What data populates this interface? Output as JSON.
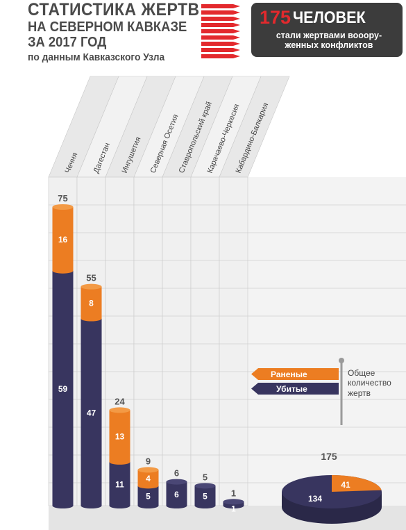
{
  "header": {
    "title_line1": "СТАТИСТИКА ЖЕРТВ",
    "title_line2": "НА СЕВЕРНОМ КАВКАЗЕ",
    "title_line3": "ЗА 2017 ГОД",
    "title_line4": "по данным Кавказского Узла"
  },
  "banner": {
    "number": "175",
    "heading": "ЧЕЛОВЕК",
    "subtitle_line1": "стали жертвами вооору-",
    "subtitle_line2": "женных конфликтов"
  },
  "legend": {
    "wounded": "Раненые",
    "killed": "Убитые",
    "total_note_line1": "Общее",
    "total_note_line2": "количество",
    "total_note_line3": "жертв"
  },
  "colors": {
    "wounded": "#ec7d22",
    "killed": "#38355f",
    "legend_bar": "#9a9a9a",
    "grid_bg": "#eeeeee"
  },
  "chart_data": [
    {
      "type": "bar",
      "stacked": true,
      "categories": [
        "Чечня",
        "Дагестан",
        "Ингушетия",
        "Северная Осетия",
        "Ставропольский край",
        "Карачаево-Черкесия",
        "Кабардино-Балкария"
      ],
      "series": [
        {
          "name": "Убитые",
          "values": [
            59,
            47,
            11,
            5,
            6,
            5,
            1
          ]
        },
        {
          "name": "Раненые",
          "values": [
            16,
            8,
            13,
            4,
            0,
            0,
            0
          ]
        }
      ],
      "totals": [
        75,
        55,
        24,
        9,
        6,
        5,
        1
      ],
      "ylim": [
        0,
        80
      ]
    },
    {
      "type": "pie",
      "labels": [
        "Убитые",
        "Раненые"
      ],
      "values": [
        134,
        41
      ],
      "total": 175
    }
  ]
}
